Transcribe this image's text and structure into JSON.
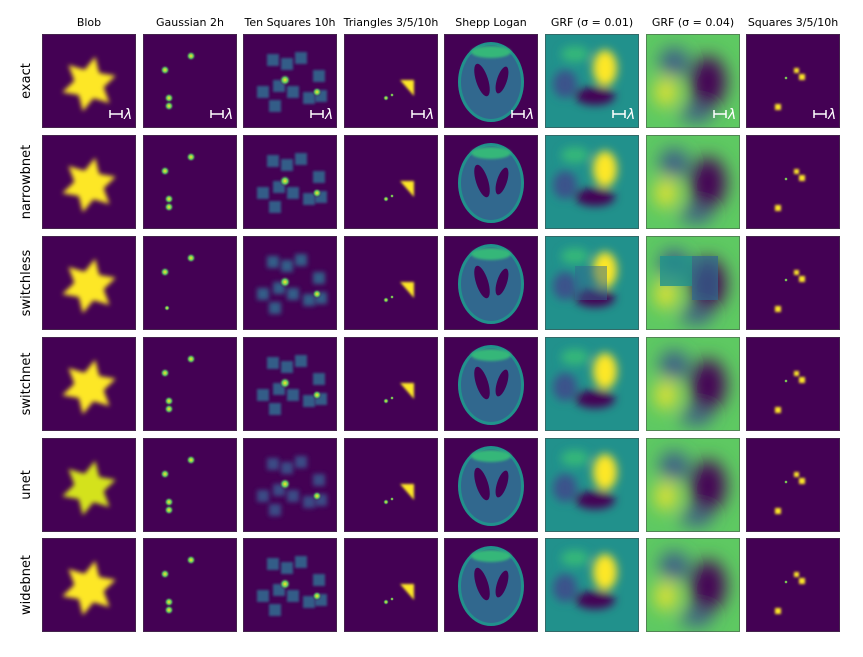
{
  "columns": [
    "Blob",
    "Gaussian 2h",
    "Ten Squares 10h",
    "Triangles 3/5/10h",
    "Shepp Logan",
    "GRF (σ = 0.01)",
    "GRF (σ = 0.04)",
    "Squares 3/5/10h"
  ],
  "rows": [
    "exact",
    "narrowbnet",
    "switchless",
    "switchnet",
    "unet",
    "widebnet"
  ],
  "scale_marker": "λ",
  "colors": {
    "background_purple": "#440154",
    "yellow": "#fde725",
    "green": "#5ec962",
    "teal": "#21918c",
    "blue": "#3b528b",
    "dark_blue": "#31688e",
    "light_green": "#35b779",
    "scale_bar": "#ffffff"
  }
}
